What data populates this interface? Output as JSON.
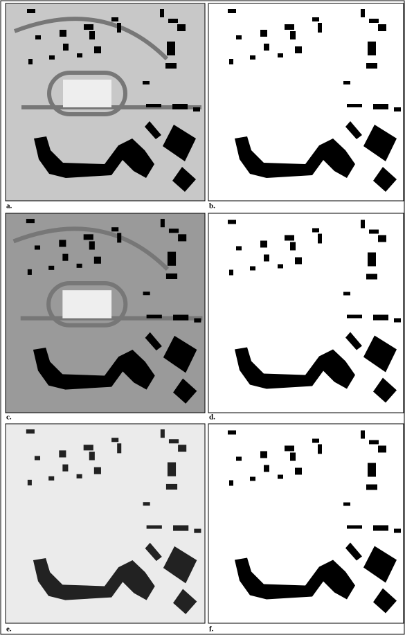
{
  "panels": [
    {
      "label": "a."
    },
    {
      "label": "b."
    },
    {
      "label": "c."
    },
    {
      "label": "d."
    },
    {
      "label": "e."
    },
    {
      "label": "f."
    }
  ]
}
